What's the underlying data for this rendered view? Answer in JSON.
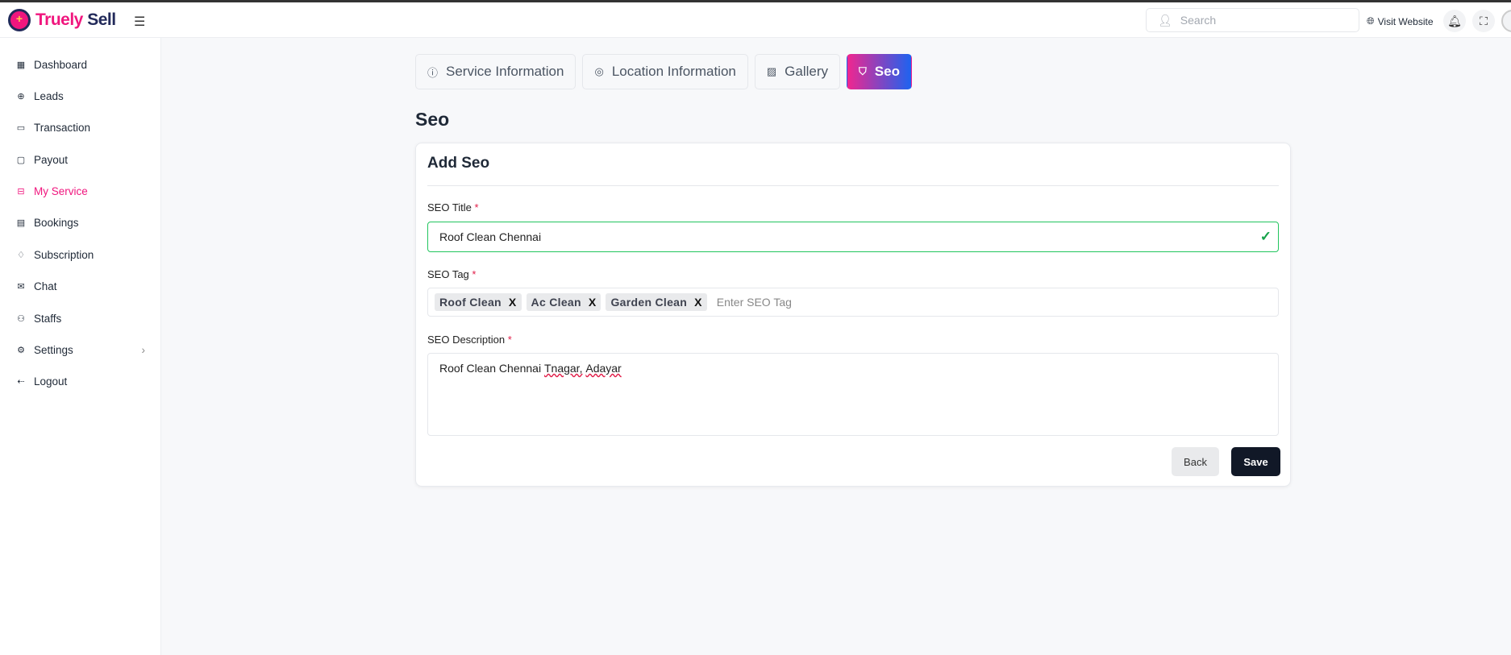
{
  "brand": {
    "part1": "Truely",
    "part2": "Sell"
  },
  "header": {
    "search_placeholder": "Search",
    "visit_website": "Visit Website"
  },
  "sidebar": {
    "items": [
      {
        "label": "Dashboard",
        "icon": "grid-icon"
      },
      {
        "label": "Leads",
        "icon": "globe-icon"
      },
      {
        "label": "Transaction",
        "icon": "credit-card-icon"
      },
      {
        "label": "Payout",
        "icon": "wallet-icon"
      },
      {
        "label": "My Service",
        "icon": "briefcase-icon",
        "active": true
      },
      {
        "label": "Bookings",
        "icon": "calendar-icon"
      },
      {
        "label": "Subscription",
        "icon": "bell-plus-icon"
      },
      {
        "label": "Chat",
        "icon": "mail-icon"
      },
      {
        "label": "Staffs",
        "icon": "users-icon"
      },
      {
        "label": "Settings",
        "icon": "gear-icon"
      },
      {
        "label": "Logout",
        "icon": "logout-icon"
      }
    ]
  },
  "tabs": [
    {
      "label": "Service Information",
      "icon": "info-icon"
    },
    {
      "label": "Location Information",
      "icon": "map-pin-icon"
    },
    {
      "label": "Gallery",
      "icon": "image-icon"
    },
    {
      "label": "Seo",
      "icon": "shield-icon",
      "active": true
    }
  ],
  "page_title": "Seo",
  "form": {
    "title": "Add Seo",
    "seo_title_label": "SEO Title",
    "seo_title_value": "Roof Clean Chennai",
    "seo_tag_label": "SEO Tag",
    "tags": [
      "Roof Clean",
      "Ac Clean",
      "Garden Clean"
    ],
    "tag_remove": "X",
    "tag_placeholder": "Enter SEO Tag",
    "seo_desc_label": "SEO Description",
    "seo_desc_value": {
      "plain": "Roof Clean Chennai ",
      "misspelled1": "Tnagar,",
      "space": " ",
      "misspelled2": "Adayar"
    },
    "required_mark": "*",
    "back": "Back",
    "save": "Save"
  },
  "colors": {
    "accent": "#f0167e",
    "gradient_end": "#1d63f0",
    "valid": "#22c55e",
    "dark_button": "#111827"
  }
}
